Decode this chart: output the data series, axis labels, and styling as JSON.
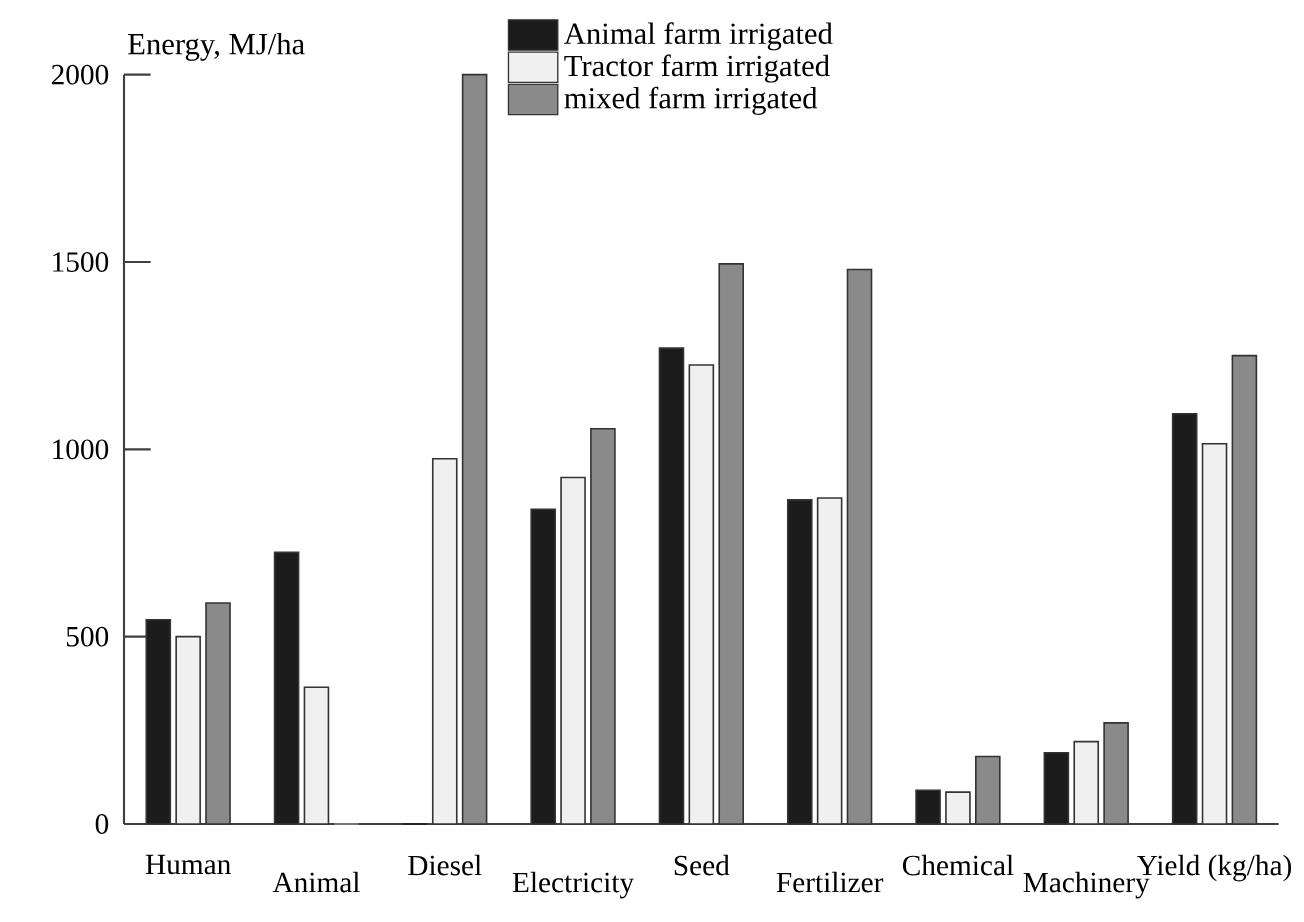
{
  "chart_data": {
    "type": "bar",
    "ylabel": "Energy, MJ/ha",
    "categories": [
      "Human",
      "Animal",
      "Diesel",
      "Electricity",
      "Seed",
      "Fertilizer",
      "Chemical",
      "Machinery",
      "Yield (kg/ha)"
    ],
    "series": [
      {
        "name": "Animal farm irrigated",
        "color": "#1c1c1c",
        "values": [
          545,
          725,
          0,
          840,
          1270,
          865,
          90,
          190,
          1095
        ]
      },
      {
        "name": "Tractor farm irrigated",
        "color": "#f0f0f0",
        "values": [
          500,
          365,
          975,
          925,
          1225,
          870,
          85,
          220,
          1015
        ]
      },
      {
        "name": "mixed farm irrigated",
        "color": "#8a8a8a",
        "values": [
          590,
          0,
          2000,
          1055,
          1495,
          1480,
          180,
          270,
          1250
        ]
      }
    ],
    "ylim": [
      0,
      2000
    ],
    "yticks": [
      0,
      500,
      1000,
      1500,
      2000
    ],
    "legend": "top"
  }
}
